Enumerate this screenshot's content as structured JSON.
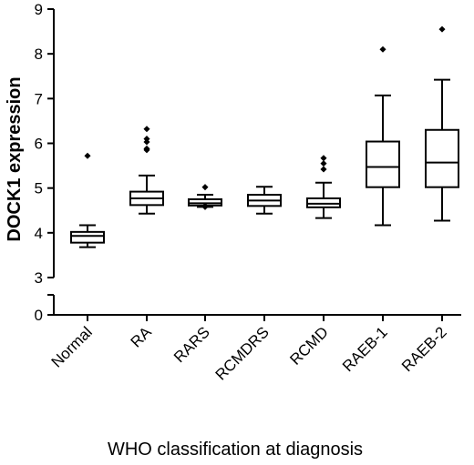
{
  "chart_data": {
    "type": "box",
    "xlabel": "WHO classification at diagnosis",
    "ylabel": "DOCK1 expression",
    "ylim": [
      0,
      9
    ],
    "yticks": [
      "0",
      "3",
      "4",
      "5",
      "6",
      "7",
      "8",
      "9"
    ],
    "axis_break": [
      0.5,
      3
    ],
    "categories": [
      "Normal",
      "RA",
      "RARS",
      "RCMDRS",
      "RCMD",
      "RAEB-1",
      "RAEB-2"
    ],
    "boxes": [
      {
        "category": "Normal",
        "whisker_low": 3.68,
        "q1": 3.78,
        "median": 3.93,
        "q3": 4.02,
        "whisker_high": 4.17,
        "outliers": [
          5.72
        ]
      },
      {
        "category": "RA",
        "whisker_low": 4.43,
        "q1": 4.62,
        "median": 4.77,
        "q3": 4.92,
        "whisker_high": 5.28,
        "outliers": [
          5.85,
          5.88,
          6.03,
          6.1,
          6.32
        ]
      },
      {
        "category": "RARS",
        "whisker_low": 4.58,
        "q1": 4.61,
        "median": 4.66,
        "q3": 4.75,
        "whisker_high": 4.85,
        "outliers": [
          5.02,
          4.58,
          4.6
        ]
      },
      {
        "category": "RCMDRS",
        "whisker_low": 4.43,
        "q1": 4.6,
        "median": 4.72,
        "q3": 4.85,
        "whisker_high": 5.03,
        "outliers": []
      },
      {
        "category": "RCMD",
        "whisker_low": 4.33,
        "q1": 4.57,
        "median": 4.65,
        "q3": 4.77,
        "whisker_high": 5.12,
        "outliers": [
          5.42,
          5.55,
          5.67
        ]
      },
      {
        "category": "RAEB-1",
        "whisker_low": 4.17,
        "q1": 5.02,
        "median": 5.47,
        "q3": 6.04,
        "whisker_high": 7.07,
        "outliers": [
          8.1
        ]
      },
      {
        "category": "RAEB-2",
        "whisker_low": 4.27,
        "q1": 5.02,
        "median": 5.57,
        "q3": 6.3,
        "whisker_high": 7.42,
        "outliers": [
          8.55
        ]
      }
    ]
  }
}
